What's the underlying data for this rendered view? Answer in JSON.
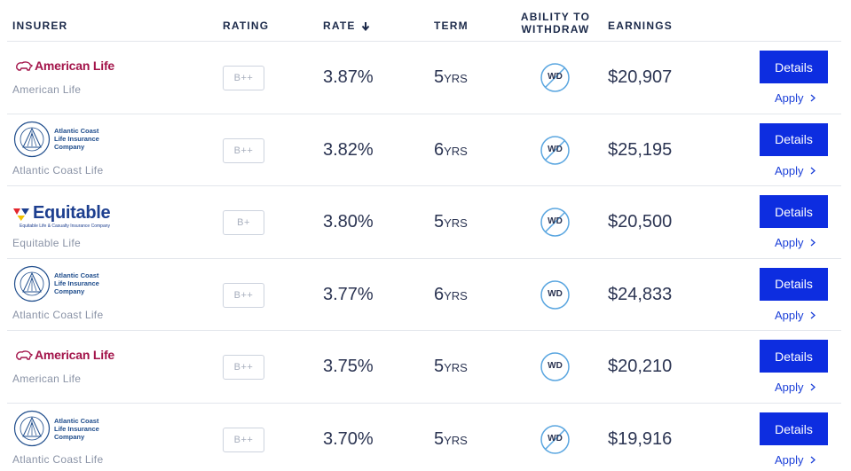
{
  "header": {
    "columns": [
      "INSURER",
      "RATING",
      "RATE",
      "TERM",
      "ABILITY TO WITHDRAW",
      "EARNINGS"
    ]
  },
  "rows": [
    {
      "logo": {
        "text": "American Life"
      },
      "insurer": "American Life",
      "rating": "B++",
      "rate": "3.87%",
      "term": "5",
      "term_unit": "YRS",
      "withdraw": "WD",
      "withdraw_crossed": true,
      "earnings": "$20,907",
      "details": "Details",
      "apply": "Apply"
    },
    {
      "logo": {
        "lines": [
          "Atlantic Coast",
          "Life Insurance",
          "Company"
        ]
      },
      "insurer": "Atlantic Coast Life",
      "rating": "B++",
      "rate": "3.82%",
      "term": "6",
      "term_unit": "YRS",
      "withdraw": "WD",
      "withdraw_crossed": true,
      "earnings": "$25,195",
      "details": "Details",
      "apply": "Apply"
    },
    {
      "logo": {
        "text": "Equitable",
        "subtext": "Equitable Life & Casualty Insurance Company"
      },
      "insurer": "Equitable Life",
      "rating": "B+",
      "rate": "3.80%",
      "term": "5",
      "term_unit": "YRS",
      "withdraw": "WD",
      "withdraw_crossed": true,
      "earnings": "$20,500",
      "details": "Details",
      "apply": "Apply"
    },
    {
      "logo": {
        "lines": [
          "Atlantic Coast",
          "Life Insurance",
          "Company"
        ]
      },
      "insurer": "Atlantic Coast Life",
      "rating": "B++",
      "rate": "3.77%",
      "term": "6",
      "term_unit": "YRS",
      "withdraw": "WD",
      "withdraw_crossed": false,
      "earnings": "$24,833",
      "details": "Details",
      "apply": "Apply"
    },
    {
      "logo": {
        "text": "American Life"
      },
      "insurer": "American Life",
      "rating": "B++",
      "rate": "3.75%",
      "term": "5",
      "term_unit": "YRS",
      "withdraw": "WD",
      "withdraw_crossed": false,
      "earnings": "$20,210",
      "details": "Details",
      "apply": "Apply"
    },
    {
      "logo": {
        "lines": [
          "Atlantic Coast",
          "Life Insurance",
          "Company"
        ]
      },
      "insurer": "Atlantic Coast Life",
      "rating": "B++",
      "rate": "3.70%",
      "term": "5",
      "term_unit": "YRS",
      "withdraw": "WD",
      "withdraw_crossed": true,
      "earnings": "$19,916",
      "details": "Details",
      "apply": "Apply"
    }
  ]
}
